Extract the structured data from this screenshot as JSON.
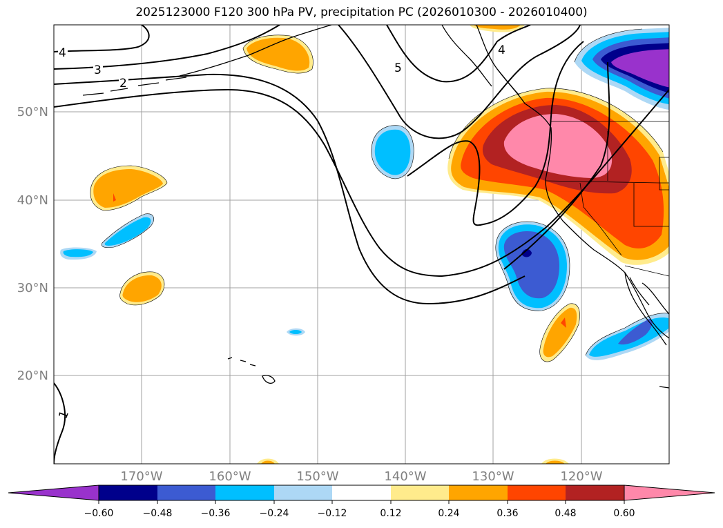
{
  "title": "2025123000 F120 300 hPa PV, precipitation PC (2026010300 - 2026010400)",
  "map": {
    "lon_labels": [
      "170°W",
      "160°W",
      "150°W",
      "140°W",
      "130°W",
      "120°W"
    ],
    "lat_labels": [
      "50°N",
      "40°N",
      "30°N",
      "20°N"
    ],
    "gridline_color": "#a0a0a0",
    "coastline_color": "#000000"
  },
  "pv_contours": {
    "labels": [
      "4",
      "3",
      "2",
      "5",
      "4",
      "1",
      "1"
    ],
    "color": "#000000"
  },
  "colorbar": {
    "tick_labels": [
      "−0.60",
      "−0.48",
      "−0.36",
      "−0.24",
      "−0.12",
      "0.12",
      "0.24",
      "0.36",
      "0.48",
      "0.60"
    ],
    "colors": [
      "#9932cc",
      "#00008b",
      "#3c5bd2",
      "#00bfff",
      "#add8f5",
      "#ffffff",
      "#ffeb8c",
      "#ffa500",
      "#ff4500",
      "#b22222",
      "#ff88aa"
    ]
  },
  "legend_colors": {
    "neg_60": "#9932cc",
    "neg_48": "#00008b",
    "neg_36": "#3c5bd2",
    "neg_24": "#00bfff",
    "neg_12": "#add8f5",
    "pos_12": "#ffeb8c",
    "pos_24": "#ffa500",
    "pos_36": "#ff4500",
    "pos_48": "#b22222",
    "pos_60": "#ff88aa"
  }
}
